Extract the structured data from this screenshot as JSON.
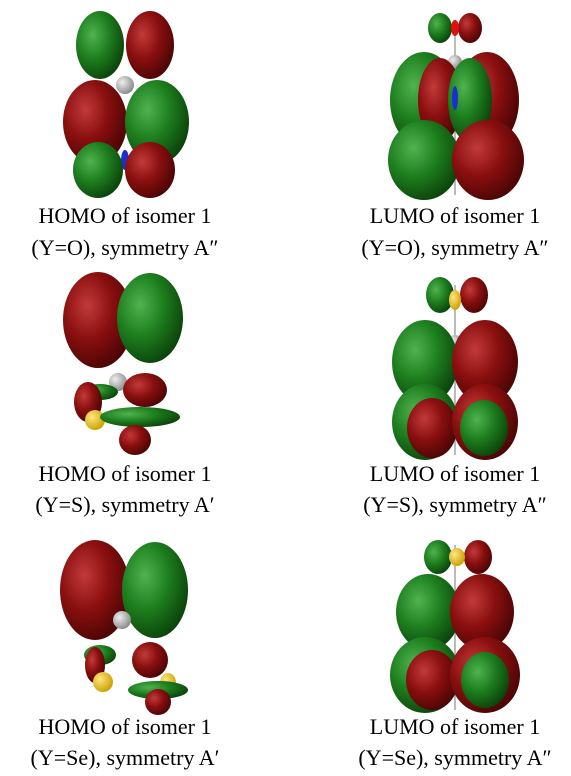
{
  "panels": [
    {
      "line1": "HOMO of isomer 1",
      "line2": "(Y=O), symmetry A″"
    },
    {
      "line1": "LUMO of isomer 1",
      "line2": "(Y=O), symmetry A″"
    },
    {
      "line1": "HOMO of isomer 1",
      "line2": "(Y=S), symmetry A′"
    },
    {
      "line1": "LUMO of isomer 1",
      "line2": "(Y=S), symmetry A″"
    },
    {
      "line1": "HOMO of isomer 1",
      "line2": "(Y=Se), symmetry A′"
    },
    {
      "line1": "LUMO of isomer 1",
      "line2": "(Y=Se), symmetry A″"
    }
  ]
}
